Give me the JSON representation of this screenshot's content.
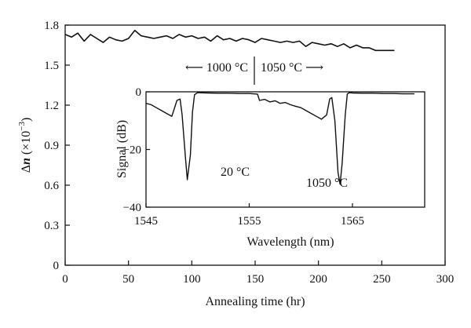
{
  "chart_data": [
    {
      "type": "line",
      "xlabel": "Annealing time (hr)",
      "ylabel_prefix": "Δ",
      "ylabel_var": "n",
      "ylabel_open": " (×10",
      "ylabel_exp": "−3",
      "ylabel_close": ")",
      "xlim": [
        0,
        300
      ],
      "ylim": [
        0,
        1.8
      ],
      "x_ticks": [
        0,
        50,
        100,
        150,
        200,
        250,
        300
      ],
      "y_ticks": [
        0,
        0.3,
        0.6,
        0.9,
        1.2,
        1.5,
        1.8
      ],
      "x_tick_labels": [
        "0",
        "50",
        "100",
        "150",
        "200",
        "250",
        "300"
      ],
      "y_tick_labels": [
        "0",
        "0.3",
        "0.6",
        "0.9",
        "1.2",
        "1.5",
        "1.8"
      ],
      "annotations": {
        "left_region": "⟵ 1000 °C",
        "right_region": "1050 °C ⟶"
      },
      "grid": false,
      "series": [
        {
          "x": [
            0,
            5,
            10,
            15,
            20,
            25,
            30,
            35,
            40,
            45,
            50,
            55,
            60,
            65,
            70,
            75,
            80,
            85,
            90,
            95,
            100,
            105,
            110,
            115,
            120,
            125,
            130,
            135,
            140,
            145,
            150,
            155,
            160,
            165,
            170,
            175,
            180,
            185,
            190,
            195,
            200,
            205,
            210,
            215,
            220,
            225,
            230,
            235,
            240,
            245,
            250,
            255,
            260
          ],
          "y": [
            1.73,
            1.71,
            1.74,
            1.68,
            1.73,
            1.7,
            1.67,
            1.71,
            1.69,
            1.68,
            1.7,
            1.76,
            1.72,
            1.71,
            1.7,
            1.71,
            1.72,
            1.7,
            1.73,
            1.71,
            1.72,
            1.7,
            1.71,
            1.68,
            1.72,
            1.69,
            1.7,
            1.68,
            1.7,
            1.69,
            1.67,
            1.7,
            1.69,
            1.68,
            1.67,
            1.68,
            1.67,
            1.68,
            1.64,
            1.67,
            1.66,
            1.65,
            1.66,
            1.64,
            1.66,
            1.63,
            1.65,
            1.63,
            1.63,
            1.61,
            1.61,
            1.61,
            1.61
          ]
        }
      ]
    },
    {
      "type": "line",
      "xlabel": "Wavelength (nm)",
      "ylabel": "Signal (dB)",
      "xlim": [
        1545,
        1572
      ],
      "ylim": [
        -40,
        0
      ],
      "x_ticks": [
        1545,
        1555,
        1565
      ],
      "y_ticks": [
        0,
        -20,
        -40
      ],
      "x_tick_labels": [
        "1545",
        "1555",
        "1565"
      ],
      "y_tick_labels": [
        "0",
        "−20",
        "−40"
      ],
      "annotations": {
        "dip1": "20 °C",
        "dip2": "1050 °C"
      },
      "grid": false,
      "series": [
        {
          "x": [
            1545,
            1545.5,
            1546,
            1546.5,
            1547,
            1547.5,
            1548,
            1548.3,
            1548.5,
            1548.8,
            1549,
            1549.3,
            1549.5,
            1549.7,
            1550,
            1551,
            1552,
            1553,
            1554,
            1555,
            1555.8,
            1556,
            1556.5,
            1557,
            1557.5,
            1558,
            1558.5,
            1559,
            1559.5,
            1560,
            1560.5,
            1561,
            1561.5,
            1562,
            1562.5,
            1562.8,
            1563,
            1563.3,
            1563.6,
            1563.8,
            1564,
            1564.3,
            1564.5,
            1564.7,
            1565,
            1566,
            1567,
            1568,
            1569,
            1570,
            1571
          ],
          "y": [
            -4,
            -4.5,
            -5.5,
            -6.5,
            -7.5,
            -8.5,
            -3,
            -2.5,
            -8,
            -22,
            -30.5,
            -22,
            -7,
            -1,
            -0.3,
            -0.4,
            -0.5,
            -0.5,
            -0.6,
            -0.6,
            -0.8,
            -3,
            -2.6,
            -3.5,
            -3.1,
            -4,
            -3.7,
            -4.5,
            -5,
            -5.5,
            -6.5,
            -7.5,
            -8.5,
            -9.5,
            -8,
            -2.5,
            -2,
            -10,
            -28,
            -32,
            -25,
            -8,
            -0.8,
            -0.3,
            -0.4,
            -0.5,
            -0.5,
            -0.6,
            -0.6,
            -0.7,
            -0.7
          ]
        }
      ]
    }
  ]
}
